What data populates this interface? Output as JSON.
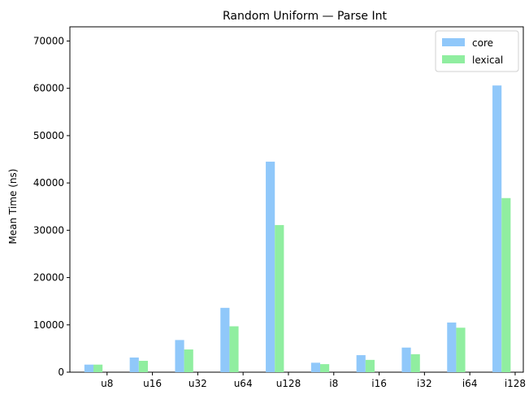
{
  "chart_data": {
    "type": "bar",
    "title": "Random Uniform — Parse Int",
    "xlabel": "",
    "ylabel": "Mean Time (ns)",
    "ylim": [
      0,
      73000
    ],
    "yticks": [
      0,
      10000,
      20000,
      30000,
      40000,
      50000,
      60000,
      70000
    ],
    "categories": [
      "u8",
      "u16",
      "u32",
      "u64",
      "u128",
      "i8",
      "i16",
      "i32",
      "i64",
      "i128"
    ],
    "series": [
      {
        "name": "core",
        "color": "#90c8fa",
        "values": [
          1600,
          3100,
          6800,
          13600,
          44500,
          2000,
          3600,
          5200,
          10500,
          60600
        ]
      },
      {
        "name": "lexical",
        "color": "#90eea0",
        "values": [
          1600,
          2400,
          4800,
          9700,
          31100,
          1700,
          2600,
          3800,
          9400,
          36800
        ]
      }
    ],
    "legend_position": "top-right",
    "grid": false
  }
}
